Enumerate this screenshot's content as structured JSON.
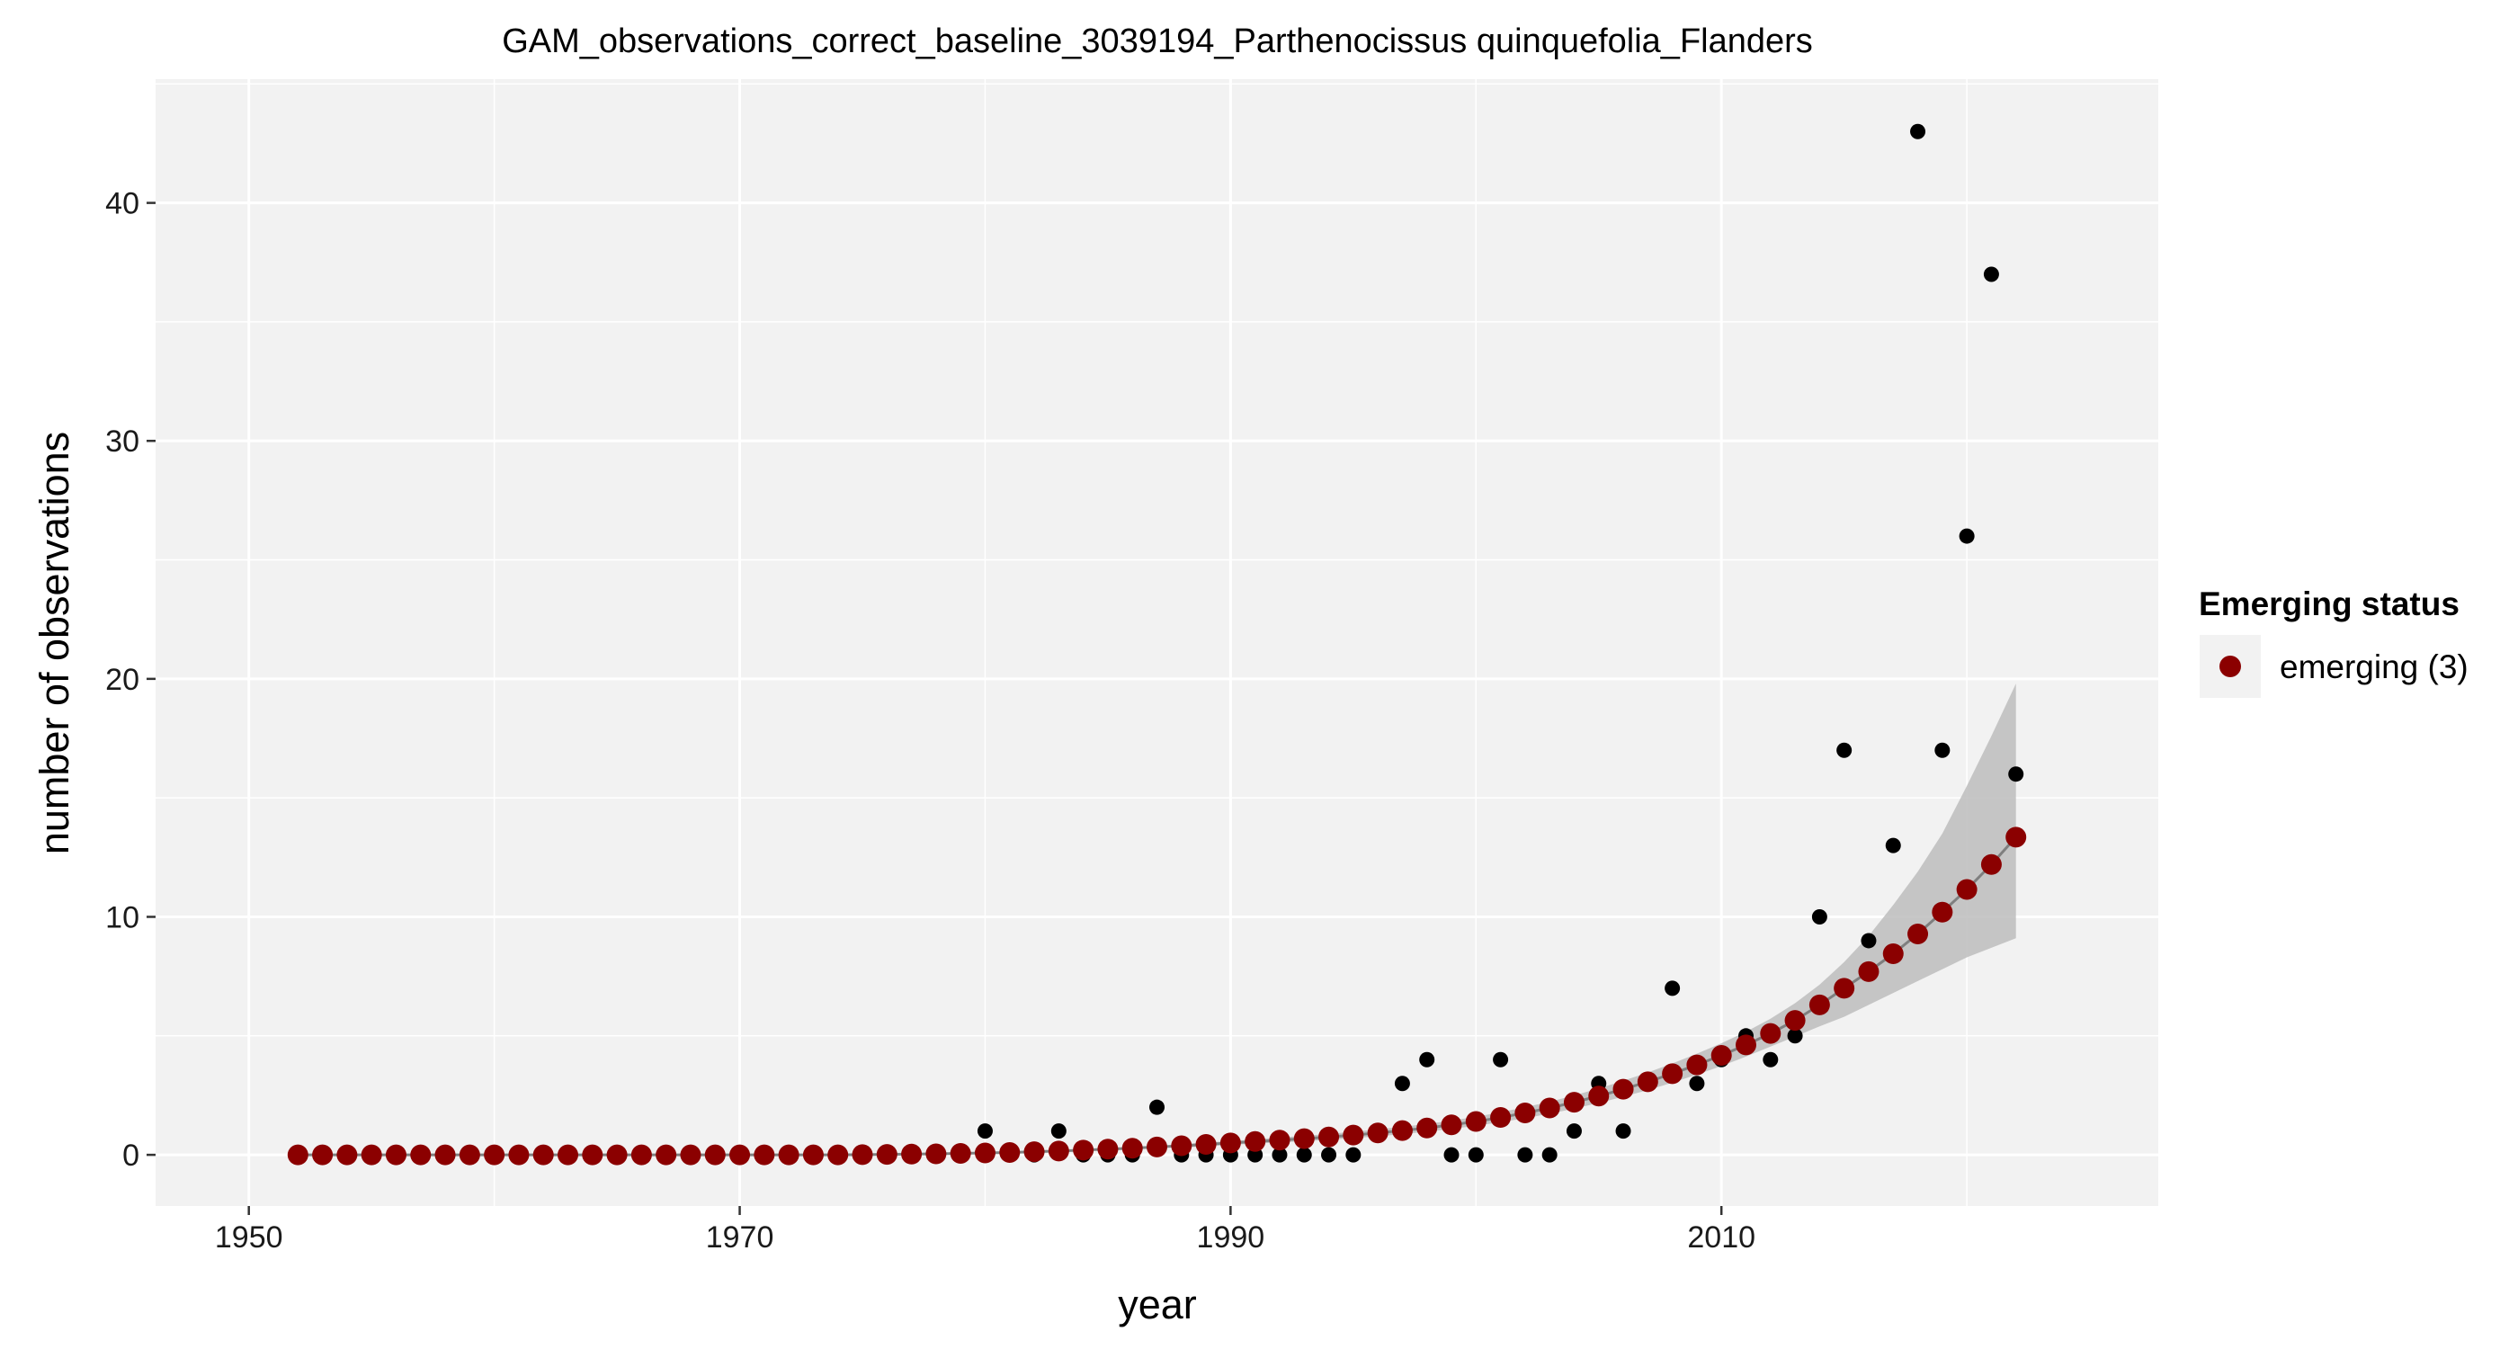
{
  "chart_data": {
    "type": "scatter",
    "title": "GAM_observations_correct_baseline_3039194_Parthenocissus quinquefolia_Flanders",
    "xlabel": "year",
    "ylabel": "number of observations",
    "xlim": [
      1946.2,
      2027.8
    ],
    "ylim": [
      -2.15,
      45.2
    ],
    "x_ticks": [
      1950,
      1970,
      1990,
      2010
    ],
    "y_ticks": [
      0,
      10,
      20,
      30,
      40
    ],
    "grid": true,
    "legend": {
      "title": "Emerging status",
      "entries": [
        {
          "label": "emerging (3)",
          "color": "#8B0000"
        }
      ],
      "placement": "right"
    },
    "colors": {
      "panel_background": "#F2F2F2",
      "grid": "#FFFFFF",
      "observations": "#000000",
      "fit_points": "#8B0000",
      "ribbon": "#BDBDBD",
      "fit_line": "#7F7F7F"
    },
    "series": [
      {
        "kind": "observed",
        "x": [
          1952,
          1953,
          1954,
          1955,
          1956,
          1957,
          1958,
          1959,
          1960,
          1961,
          1962,
          1963,
          1964,
          1965,
          1966,
          1967,
          1968,
          1969,
          1970,
          1971,
          1972,
          1973,
          1974,
          1975,
          1976,
          1977,
          1978,
          1979,
          1980,
          1981,
          1982,
          1983,
          1984,
          1985,
          1986,
          1987,
          1988,
          1989,
          1990,
          1991,
          1992,
          1993,
          1994,
          1995,
          1996,
          1997,
          1998,
          1999,
          2000,
          2001,
          2002,
          2003,
          2004,
          2005,
          2006,
          2007,
          2008,
          2009,
          2010,
          2011,
          2012,
          2013,
          2014,
          2015,
          2016,
          2017,
          2018,
          2019,
          2020,
          2021,
          2022
        ],
        "values": [
          0,
          0,
          0,
          0,
          0,
          0,
          0,
          0,
          0,
          0,
          0,
          0,
          0,
          0,
          0,
          0,
          0,
          0,
          0,
          0,
          0,
          0,
          0,
          0,
          0,
          0,
          0,
          0,
          1,
          0,
          0,
          1,
          0,
          0,
          0,
          2,
          0,
          0,
          0,
          0,
          0,
          0,
          0,
          0,
          1,
          3,
          4,
          0,
          0,
          4,
          0,
          0,
          1,
          3,
          1,
          3,
          7,
          3,
          4,
          5,
          4,
          5,
          10,
          17,
          9,
          13,
          43,
          17,
          26,
          37,
          16
        ]
      },
      {
        "name": "emerging (3)",
        "kind": "fitted",
        "x": [
          1952,
          1953,
          1954,
          1955,
          1956,
          1957,
          1958,
          1959,
          1960,
          1961,
          1962,
          1963,
          1964,
          1965,
          1966,
          1967,
          1968,
          1969,
          1970,
          1971,
          1972,
          1973,
          1974,
          1975,
          1976,
          1977,
          1978,
          1979,
          1980,
          1981,
          1982,
          1983,
          1984,
          1985,
          1986,
          1987,
          1988,
          1989,
          1990,
          1991,
          1992,
          1993,
          1994,
          1995,
          1996,
          1997,
          1998,
          1999,
          2000,
          2001,
          2002,
          2003,
          2004,
          2005,
          2006,
          2007,
          2008,
          2009,
          2010,
          2011,
          2012,
          2013,
          2014,
          2015,
          2016,
          2017,
          2018,
          2019,
          2020,
          2021,
          2022
        ],
        "values": [
          0,
          0,
          0,
          0,
          0,
          0,
          0,
          0,
          0,
          0,
          0,
          0,
          0,
          0,
          0,
          0,
          0,
          0,
          0,
          0,
          0,
          0,
          0,
          0.01,
          0.02,
          0.03,
          0.04,
          0.06,
          0.08,
          0.1,
          0.13,
          0.16,
          0.2,
          0.24,
          0.28,
          0.33,
          0.38,
          0.44,
          0.5,
          0.56,
          0.62,
          0.68,
          0.75,
          0.83,
          0.92,
          1.02,
          1.13,
          1.26,
          1.4,
          1.57,
          1.76,
          1.97,
          2.21,
          2.47,
          2.76,
          3.07,
          3.41,
          3.78,
          4.18,
          4.62,
          5.1,
          5.65,
          6.3,
          7.0,
          7.7,
          8.45,
          9.28,
          10.2,
          11.15,
          12.2,
          13.35
        ],
        "ci_lower": [
          0,
          0,
          0,
          0,
          0,
          0,
          0,
          0,
          0,
          0,
          0,
          0,
          0,
          0,
          0,
          0,
          0,
          0,
          0,
          0,
          0,
          0,
          0,
          0,
          0,
          0,
          0,
          0,
          0,
          0,
          0,
          0,
          0,
          0,
          0,
          0,
          0.3,
          0.36,
          0.42,
          0.47,
          0.52,
          0.57,
          0.63,
          0.7,
          0.78,
          0.87,
          0.97,
          1.09,
          1.22,
          1.37,
          1.54,
          1.73,
          1.94,
          2.18,
          2.44,
          2.72,
          3.03,
          3.37,
          3.73,
          4.13,
          4.55,
          4.97,
          5.4,
          5.8,
          6.3,
          6.8,
          7.3,
          7.8,
          8.3,
          8.7,
          9.1
        ],
        "ci_upper": [
          0,
          0,
          0,
          0,
          0,
          0,
          0,
          0,
          0,
          0,
          0,
          0,
          0,
          0,
          0,
          0,
          0,
          0,
          0,
          0,
          0,
          0,
          0,
          0,
          0,
          0,
          0,
          0,
          0,
          0,
          0,
          0,
          0,
          0,
          0,
          0,
          0.45,
          0.52,
          0.58,
          0.65,
          0.73,
          0.8,
          0.88,
          0.97,
          1.07,
          1.18,
          1.3,
          1.44,
          1.6,
          1.79,
          2.0,
          2.23,
          2.5,
          2.79,
          3.11,
          3.46,
          3.84,
          4.25,
          4.69,
          5.17,
          5.72,
          6.37,
          7.15,
          8.1,
          9.2,
          10.5,
          11.9,
          13.5,
          15.5,
          17.6,
          19.8
        ]
      }
    ]
  }
}
